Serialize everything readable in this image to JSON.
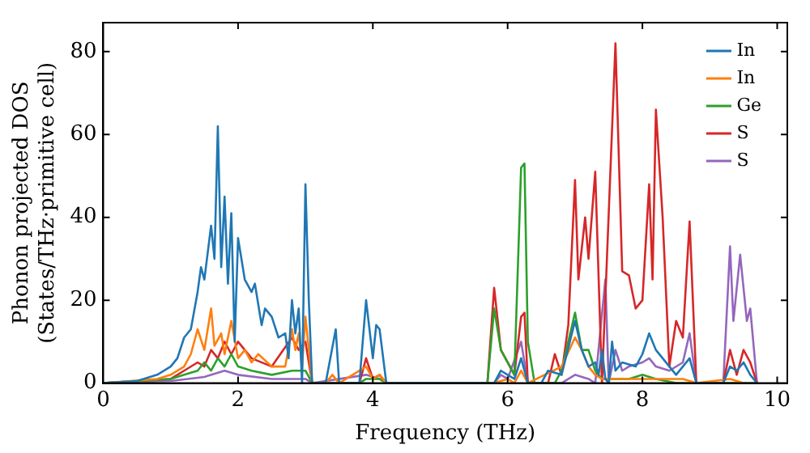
{
  "chart_data": {
    "type": "line",
    "xlabel": "Frequency (THz)",
    "ylabel": "Phonon projected DOS\n(States/THz·primitive cell)",
    "xlim": [
      0,
      10.15
    ],
    "xticks": [
      0,
      2,
      4,
      6,
      8,
      10
    ],
    "ylim": [
      0,
      87
    ],
    "yticks": [
      0,
      20,
      40,
      60,
      80
    ],
    "grid": false,
    "legend": "top right",
    "marker": "none",
    "line_style": "solid",
    "series": [
      {
        "name": "In",
        "color": "#1f77b4",
        "x": [
          0,
          0.5,
          0.8,
          1.0,
          1.1,
          1.2,
          1.3,
          1.4,
          1.45,
          1.5,
          1.6,
          1.65,
          1.7,
          1.75,
          1.8,
          1.85,
          1.9,
          1.95,
          2.0,
          2.1,
          2.2,
          2.25,
          2.35,
          2.4,
          2.5,
          2.6,
          2.7,
          2.75,
          2.8,
          2.85,
          2.9,
          2.95,
          3.0,
          3.05,
          3.1,
          3.3,
          3.45,
          3.5,
          3.8,
          3.9,
          4.0,
          4.05,
          4.1,
          4.2,
          5.8,
          5.9,
          6.0,
          6.1,
          6.2,
          6.3,
          6.5,
          6.6,
          6.8,
          7.0,
          7.1,
          7.2,
          7.3,
          7.35,
          7.4,
          7.45,
          7.5,
          7.55,
          7.6,
          7.7,
          7.9,
          8.0,
          8.1,
          8.2,
          8.3,
          8.4,
          8.5,
          8.6,
          8.7,
          8.8,
          9.2,
          9.3,
          9.4,
          9.5,
          9.6,
          9.7
        ],
        "values": [
          0,
          0.5,
          2,
          4,
          6,
          11,
          13,
          22,
          28,
          25,
          38,
          30,
          62,
          28,
          45,
          24,
          41,
          10,
          35,
          25,
          22,
          24,
          14,
          18,
          16,
          11,
          12,
          6,
          20,
          12,
          18,
          0,
          48,
          20,
          0,
          0,
          13,
          0,
          0,
          20,
          6,
          14,
          13,
          0,
          0,
          3,
          2,
          1,
          6,
          0,
          0,
          3,
          2,
          15,
          8,
          4,
          5,
          2,
          8,
          1,
          0,
          10,
          3,
          5,
          4,
          7,
          12,
          8,
          6,
          4,
          2,
          4,
          6,
          0,
          0,
          4,
          3,
          5,
          2,
          0
        ]
      },
      {
        "name": "In",
        "color": "#ff7f0e",
        "x": [
          0,
          0.8,
          1.0,
          1.2,
          1.3,
          1.4,
          1.5,
          1.6,
          1.65,
          1.75,
          1.8,
          1.9,
          2.0,
          2.1,
          2.2,
          2.3,
          2.5,
          2.7,
          2.8,
          2.85,
          2.9,
          2.95,
          3.0,
          3.1,
          3.3,
          3.4,
          3.5,
          3.9,
          4.0,
          4.1,
          4.2,
          5.8,
          6.0,
          6.1,
          6.2,
          6.3,
          6.8,
          7.0,
          7.1,
          7.2,
          7.3,
          7.4,
          7.6,
          7.8,
          8.0,
          8.2,
          8.6,
          8.8,
          9.3,
          9.5
        ],
        "values": [
          0,
          1,
          2,
          4,
          7,
          13,
          8,
          18,
          9,
          12,
          7,
          15,
          6,
          8,
          5,
          7,
          4,
          4,
          13,
          8,
          12,
          4,
          16,
          0,
          0,
          2,
          0,
          4,
          1,
          2,
          0,
          0,
          1,
          0,
          3,
          0,
          4,
          11,
          8,
          4,
          2,
          1,
          1,
          1,
          1,
          1,
          1,
          0,
          1,
          0
        ]
      },
      {
        "name": "Ge",
        "color": "#2ca02c",
        "x": [
          0,
          1.0,
          1.2,
          1.4,
          1.5,
          1.6,
          1.7,
          1.8,
          1.9,
          2.0,
          2.2,
          2.5,
          2.8,
          3.0,
          3.1,
          3.8,
          3.9,
          4.1,
          4.2,
          5.7,
          5.8,
          5.9,
          6.0,
          6.1,
          6.2,
          6.25,
          6.3,
          6.4,
          6.7,
          6.8,
          7.0,
          7.1,
          7.2,
          7.3,
          7.4,
          7.6,
          7.8,
          8.0,
          8.2,
          8.5,
          9.7
        ],
        "values": [
          0,
          1,
          2,
          3,
          5,
          3,
          6,
          4,
          7,
          4,
          3,
          2,
          3,
          3,
          0,
          0,
          1,
          1,
          0,
          0,
          18,
          8,
          5,
          2,
          52,
          53,
          10,
          0,
          0,
          3,
          17,
          8,
          8,
          3,
          1,
          1,
          1,
          2,
          1,
          0,
          0
        ]
      },
      {
        "name": "S",
        "color": "#d62728",
        "x": [
          0,
          1.0,
          1.2,
          1.4,
          1.5,
          1.6,
          1.7,
          1.8,
          1.9,
          2.0,
          2.2,
          2.5,
          2.8,
          2.9,
          3.0,
          3.1,
          3.8,
          3.9,
          4.0,
          4.1,
          4.2,
          5.7,
          5.8,
          5.9,
          6.0,
          6.1,
          6.2,
          6.25,
          6.3,
          6.6,
          6.7,
          6.8,
          6.9,
          7.0,
          7.05,
          7.15,
          7.2,
          7.3,
          7.4,
          7.6,
          7.7,
          7.8,
          7.9,
          8.0,
          8.1,
          8.15,
          8.2,
          8.3,
          8.4,
          8.5,
          8.6,
          8.7,
          8.8,
          9.2,
          9.3,
          9.4,
          9.5,
          9.6,
          9.7
        ],
        "values": [
          0,
          1,
          3,
          5,
          4,
          8,
          6,
          10,
          7,
          10,
          6,
          4,
          11,
          8,
          10,
          0,
          0,
          6,
          1,
          2,
          0,
          0,
          23,
          8,
          5,
          2,
          16,
          17,
          0,
          0,
          7,
          2,
          14,
          49,
          25,
          40,
          30,
          51,
          0,
          82,
          27,
          26,
          18,
          20,
          48,
          25,
          66,
          40,
          4,
          15,
          11,
          39,
          0,
          0,
          8,
          2,
          8,
          5,
          0
        ]
      },
      {
        "name": "S",
        "color": "#9467bd",
        "x": [
          0,
          1.0,
          1.5,
          1.8,
          2.0,
          2.5,
          3.0,
          3.1,
          3.9,
          4.1,
          4.2,
          5.8,
          5.9,
          6.0,
          6.2,
          6.3,
          6.8,
          7.0,
          7.2,
          7.3,
          7.45,
          7.5,
          7.6,
          7.7,
          7.8,
          8.0,
          8.1,
          8.2,
          8.4,
          8.6,
          8.7,
          8.8,
          9.2,
          9.3,
          9.35,
          9.45,
          9.55,
          9.6,
          9.7
        ],
        "values": [
          0,
          0.5,
          1.5,
          3,
          2,
          1,
          1,
          0,
          2,
          1,
          0,
          0,
          2,
          1,
          10,
          0,
          0,
          2,
          1,
          0,
          25,
          0,
          8,
          3,
          4,
          5,
          6,
          4,
          3,
          5,
          12,
          0,
          0,
          33,
          15,
          31,
          15,
          18,
          0
        ]
      }
    ]
  }
}
